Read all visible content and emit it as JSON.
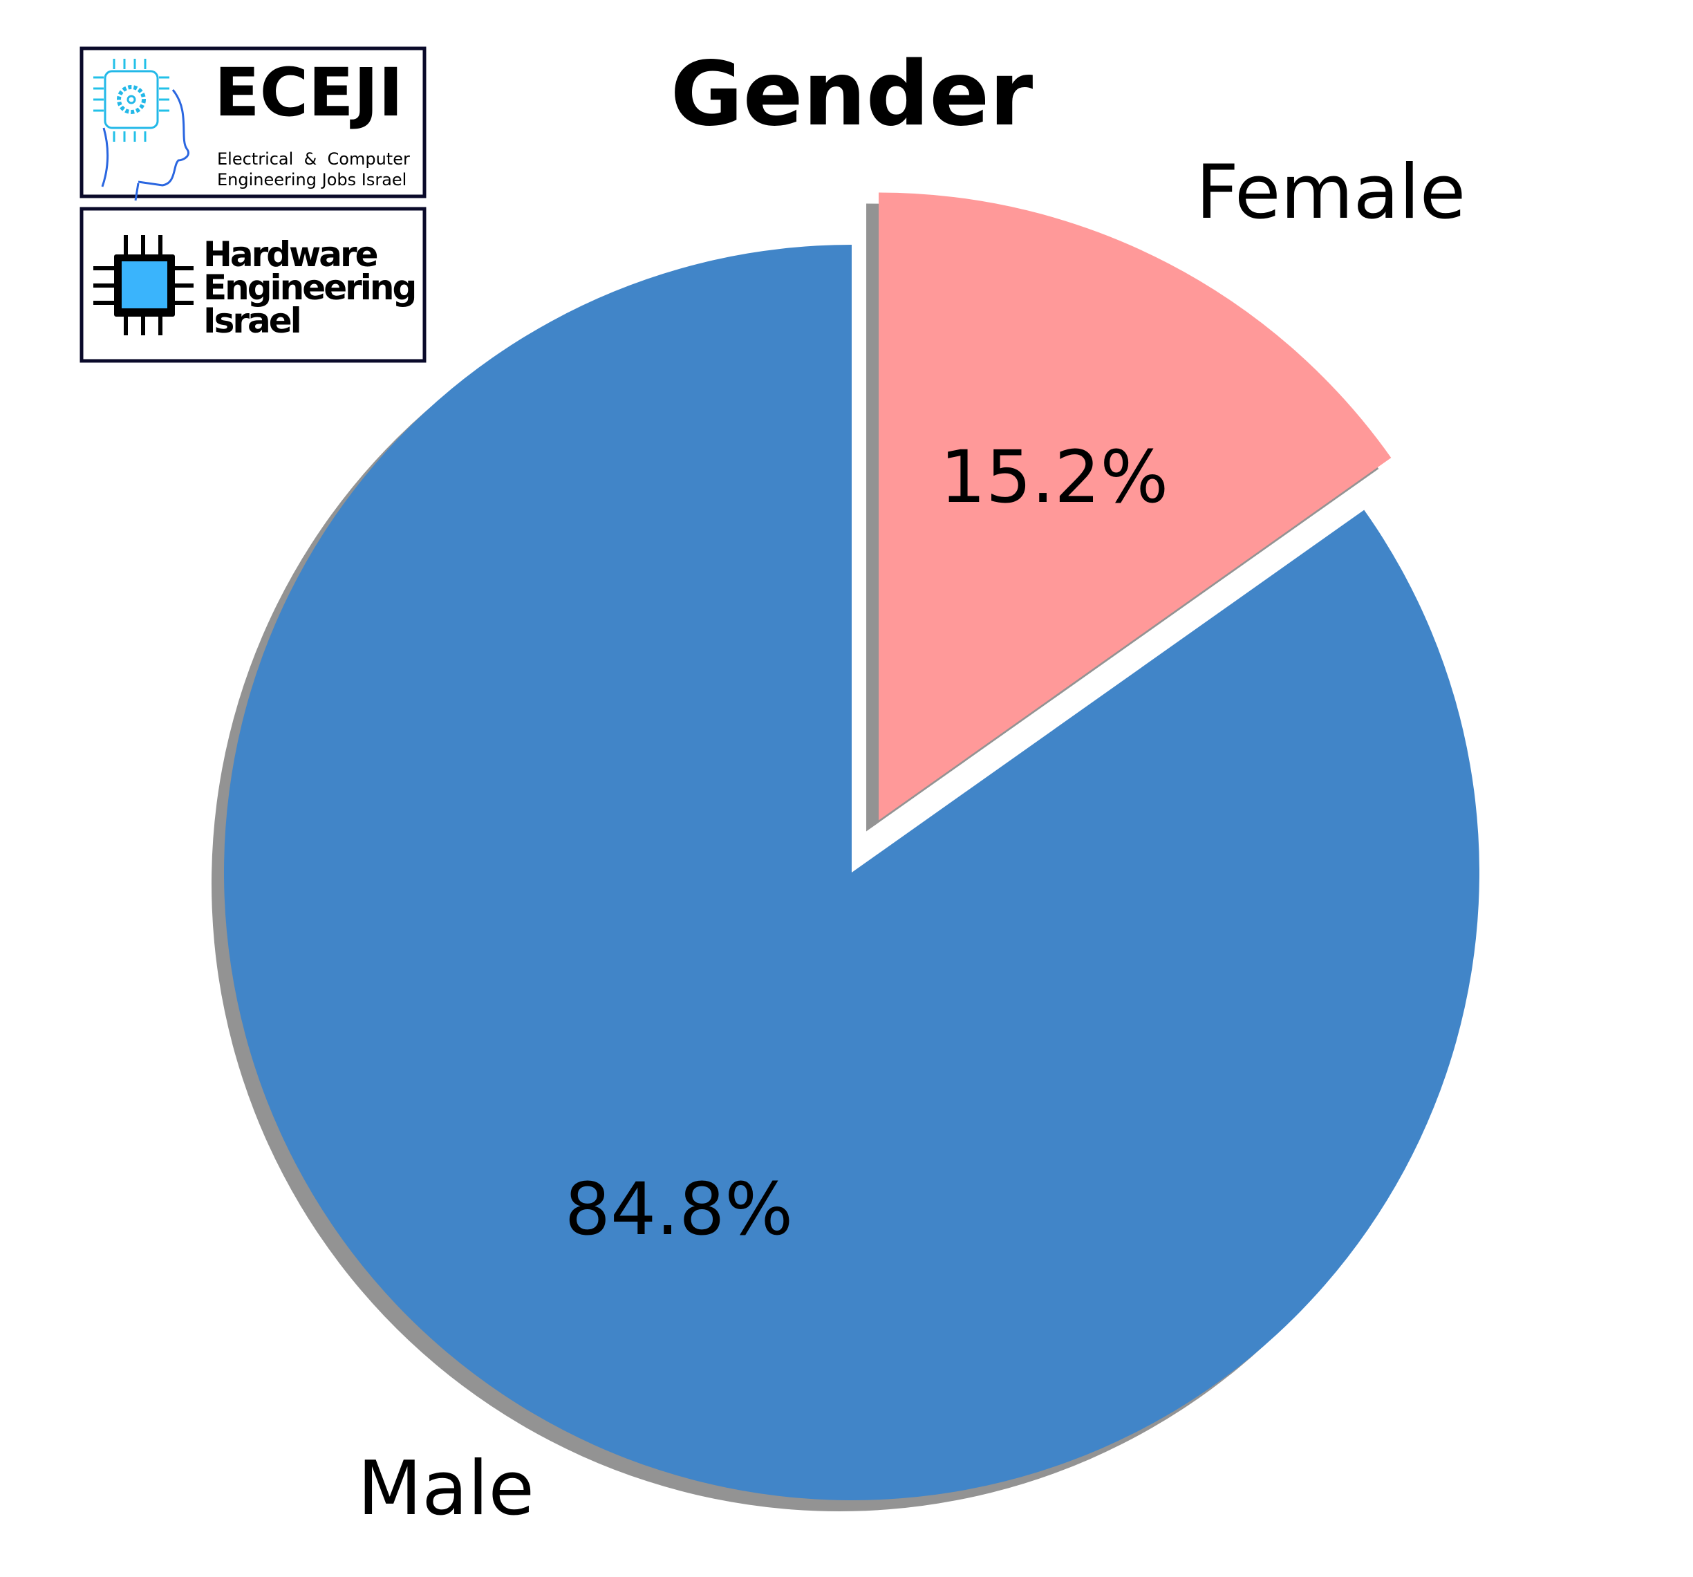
{
  "chart_data": {
    "type": "pie",
    "title": "Gender",
    "categories": [
      "Male",
      "Female"
    ],
    "values": [
      84.8,
      15.2
    ],
    "labels": [
      "84.8%",
      "15.2%"
    ],
    "colors": [
      "#4185c8",
      "#ff9999"
    ],
    "exploded": [
      "Female"
    ],
    "shadow": true,
    "start_angle_deg": 90,
    "direction": "clockwise-from-female"
  },
  "logos": {
    "eceji": {
      "name": "ECEJI",
      "subtitle_line1": "Electrical  &  Computer",
      "subtitle_line2": "Engineering Jobs Israel"
    },
    "hwe": {
      "line1": "Hardware",
      "line2": "Engineering",
      "line3": "Israel"
    }
  }
}
